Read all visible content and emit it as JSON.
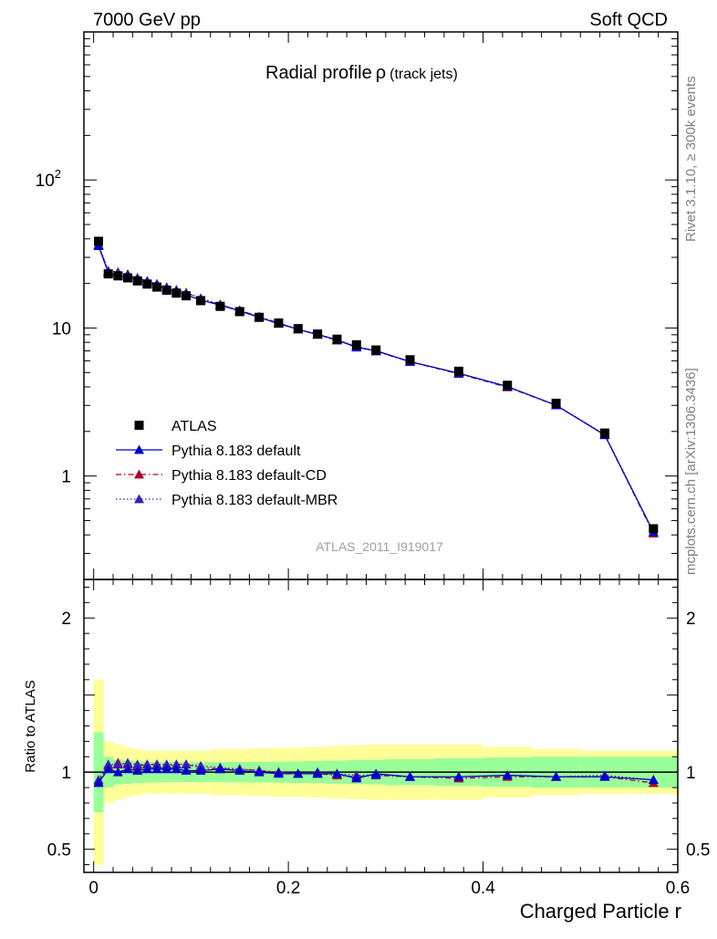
{
  "header": {
    "left": "7000 GeV pp",
    "right": "Soft QCD"
  },
  "side_labels": {
    "rivet": "Rivet 3.1.10, ≥ 300k events",
    "mcplots": "mcplots.cern.ch [arXiv:1306.3436]"
  },
  "chart_data": {
    "type": "line",
    "title": "Radial profile",
    "title_symbol": "ρ",
    "title_suffix": "(track jets)",
    "analysis_label": "ATLAS_2011_I919017",
    "xlabel": "Charged Particle r",
    "ylabel_ratio": "Ratio to ATLAS",
    "xlim": [
      -0.01,
      0.6
    ],
    "ylim_main": [
      0.2,
      1000
    ],
    "ylim_ratio": [
      0.35,
      2.25
    ],
    "yscale_main": "log",
    "x_ticks": [
      0,
      0.2,
      0.4,
      0.6
    ],
    "x_tick_labels": [
      "0",
      "0.2",
      "0.4",
      "0.6"
    ],
    "main_y_ticks": [
      1,
      10,
      100
    ],
    "main_y_tick_labels": [
      "1",
      "10",
      "10"
    ],
    "main_y_tick_exp": [
      "",
      "",
      "2"
    ],
    "ratio_y_ticks": [
      0.5,
      1,
      2
    ],
    "ratio_y_tick_labels": [
      "0.5",
      "1",
      "2"
    ],
    "legend_position": "lower-left",
    "x": [
      0.005,
      0.015,
      0.025,
      0.035,
      0.045,
      0.055,
      0.065,
      0.075,
      0.085,
      0.095,
      0.11,
      0.13,
      0.15,
      0.17,
      0.19,
      0.21,
      0.23,
      0.25,
      0.27,
      0.29,
      0.325,
      0.375,
      0.425,
      0.475,
      0.525,
      0.575
    ],
    "x_edges": [
      0,
      0.01,
      0.02,
      0.03,
      0.04,
      0.05,
      0.06,
      0.07,
      0.08,
      0.09,
      0.1,
      0.12,
      0.14,
      0.16,
      0.18,
      0.2,
      0.22,
      0.24,
      0.26,
      0.28,
      0.3,
      0.35,
      0.4,
      0.45,
      0.5,
      0.55,
      0.6
    ],
    "data": {
      "name": "ATLAS",
      "values": [
        38.5,
        23.2,
        22.5,
        21.8,
        20.8,
        19.8,
        18.9,
        18.0,
        17.2,
        16.5,
        15.3,
        14.0,
        12.9,
        11.8,
        10.8,
        9.9,
        9.1,
        8.4,
        7.7,
        7.1,
        6.1,
        5.1,
        4.1,
        3.1,
        1.95,
        0.44
      ],
      "band_inner": [
        0.26,
        0.1,
        0.08,
        0.075,
        0.07,
        0.068,
        0.066,
        0.065,
        0.065,
        0.065,
        0.065,
        0.065,
        0.066,
        0.067,
        0.068,
        0.07,
        0.072,
        0.075,
        0.078,
        0.08,
        0.085,
        0.09,
        0.095,
        0.1,
        0.1,
        0.1
      ],
      "band_outer": [
        0.6,
        0.2,
        0.18,
        0.16,
        0.15,
        0.14,
        0.14,
        0.14,
        0.14,
        0.14,
        0.14,
        0.15,
        0.15,
        0.155,
        0.16,
        0.16,
        0.165,
        0.17,
        0.175,
        0.18,
        0.18,
        0.18,
        0.165,
        0.15,
        0.14,
        0.14
      ]
    },
    "series": [
      {
        "name": "Pythia 8.183 default",
        "color": "#0000cc",
        "dash": "solid",
        "ratios": [
          0.93,
          1.02,
          1.0,
          1.02,
          1.01,
          1.02,
          1.02,
          1.02,
          1.02,
          1.01,
          1.01,
          1.02,
          1.01,
          1.0,
          0.99,
          0.99,
          0.99,
          0.99,
          0.96,
          0.99,
          0.97,
          0.97,
          0.98,
          0.97,
          0.97,
          0.95
        ]
      },
      {
        "name": "Pythia 8.183 default-CD",
        "color": "#b0002a",
        "dash": "dashdot",
        "ratios": [
          0.94,
          1.04,
          1.06,
          1.05,
          1.04,
          1.05,
          1.05,
          1.04,
          1.05,
          1.05,
          1.03,
          1.02,
          1.02,
          1.01,
          1.0,
          0.99,
          0.99,
          0.98,
          0.97,
          0.98,
          0.97,
          0.96,
          0.97,
          0.97,
          0.97,
          0.93
        ]
      },
      {
        "name": "Pythia 8.183 default-MBR",
        "color": "#3a1fb8",
        "dash": "dotted",
        "ratios": [
          0.95,
          1.05,
          1.05,
          1.06,
          1.05,
          1.05,
          1.05,
          1.05,
          1.05,
          1.05,
          1.04,
          1.03,
          1.02,
          1.01,
          1.0,
          0.99,
          1.0,
          0.99,
          0.98,
          0.98,
          0.97,
          0.97,
          0.98,
          0.97,
          0.98,
          0.95
        ]
      }
    ]
  }
}
